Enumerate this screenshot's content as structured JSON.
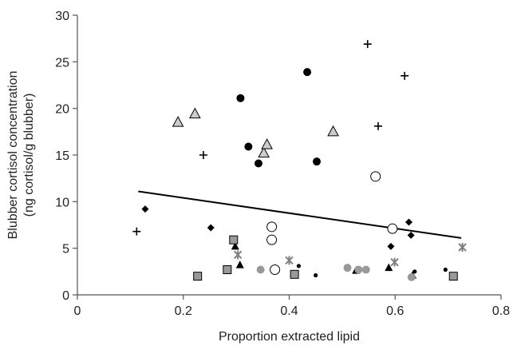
{
  "chart_data": {
    "type": "scatter",
    "title": "",
    "xlabel": "Proportion extracted lipid",
    "ylabel": [
      "Blubber cortisol concentration",
      "(ng cortisol/g blubber)"
    ],
    "xlim": [
      0,
      0.8
    ],
    "ylim": [
      0,
      30
    ],
    "xticks": [
      0,
      0.2,
      0.4,
      0.6,
      0.8
    ],
    "xtick_labels": [
      "0",
      "0.2",
      "0.4",
      "0.6",
      "0.8"
    ],
    "yticks": [
      0,
      5,
      10,
      15,
      20,
      25,
      30
    ],
    "ytick_labels": [
      "0",
      "5",
      "10",
      "15",
      "20",
      "25",
      "30"
    ],
    "grid": false,
    "legend": "none",
    "trendline": {
      "x": [
        0.115,
        0.725
      ],
      "y": [
        11.1,
        6.1
      ]
    },
    "series": [
      {
        "marker": "plus",
        "color": "#000000",
        "points": [
          [
            0.112,
            6.8
          ],
          [
            0.238,
            15.0
          ],
          [
            0.548,
            26.9
          ],
          [
            0.568,
            18.1
          ],
          [
            0.618,
            23.5
          ]
        ]
      },
      {
        "marker": "filled-circle",
        "color": "#000000",
        "points": [
          [
            0.308,
            21.1
          ],
          [
            0.323,
            15.9
          ],
          [
            0.342,
            14.1
          ],
          [
            0.434,
            23.9
          ],
          [
            0.452,
            14.3
          ]
        ]
      },
      {
        "marker": "open-triangle",
        "color": "#cccccc",
        "points": [
          [
            0.19,
            18.5
          ],
          [
            0.222,
            19.4
          ],
          [
            0.352,
            15.2
          ],
          [
            0.358,
            16.1
          ],
          [
            0.483,
            17.5
          ]
        ]
      },
      {
        "marker": "open-circle",
        "color": "#ffffff",
        "points": [
          [
            0.367,
            7.3
          ],
          [
            0.367,
            5.9
          ],
          [
            0.373,
            2.7
          ],
          [
            0.563,
            12.7
          ],
          [
            0.595,
            7.1
          ]
        ]
      },
      {
        "marker": "diamond",
        "color": "#000000",
        "points": [
          [
            0.128,
            9.2
          ],
          [
            0.252,
            7.2
          ],
          [
            0.592,
            5.2
          ],
          [
            0.626,
            7.8
          ],
          [
            0.63,
            6.4
          ]
        ]
      },
      {
        "marker": "filled-triangle",
        "color": "#000000",
        "points": [
          [
            0.298,
            5.2
          ],
          [
            0.307,
            3.2
          ],
          [
            0.526,
            2.6
          ],
          [
            0.588,
            2.9
          ],
          [
            0.633,
            2.1
          ]
        ]
      },
      {
        "marker": "square",
        "color": "#999999",
        "points": [
          [
            0.227,
            2.0
          ],
          [
            0.283,
            2.7
          ],
          [
            0.295,
            5.9
          ],
          [
            0.41,
            2.2
          ],
          [
            0.71,
            2.0
          ]
        ]
      },
      {
        "marker": "asterisk",
        "color": "#808080",
        "points": [
          [
            0.303,
            4.3
          ],
          [
            0.4,
            3.7
          ],
          [
            0.599,
            3.5
          ],
          [
            0.727,
            5.1
          ]
        ]
      },
      {
        "marker": "small-dot",
        "color": "#000000",
        "points": [
          [
            0.418,
            3.1
          ],
          [
            0.45,
            2.1
          ],
          [
            0.637,
            2.5
          ],
          [
            0.695,
            2.7
          ]
        ]
      },
      {
        "marker": "gray-circle",
        "color": "#999999",
        "points": [
          [
            0.346,
            2.7
          ],
          [
            0.51,
            2.9
          ],
          [
            0.531,
            2.7
          ],
          [
            0.545,
            2.7
          ],
          [
            0.631,
            1.9
          ]
        ]
      }
    ]
  }
}
